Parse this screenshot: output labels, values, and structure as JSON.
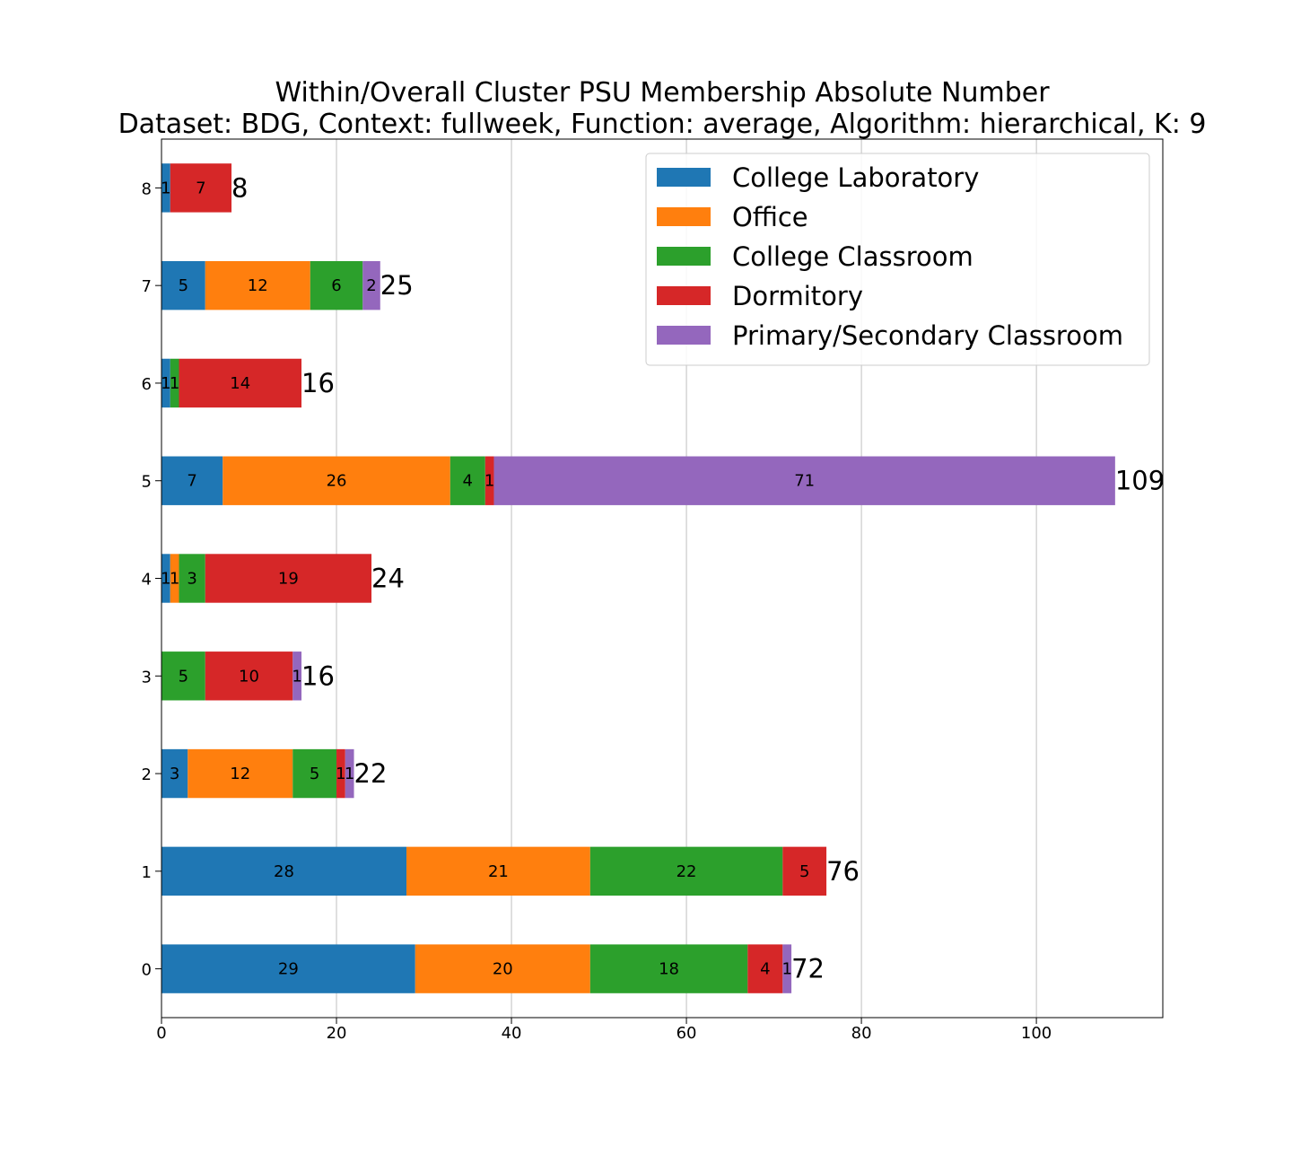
{
  "chart_data": {
    "type": "bar",
    "orientation": "horizontal",
    "stacked": true,
    "title": "Within/Overall Cluster PSU Membership Absolute Number",
    "subtitle": "Dataset: BDG, Context: fullweek, Function: average, Algorithm: hierarchical, K: 9",
    "xlabel": "",
    "ylabel": "",
    "xlim": [
      0,
      114.45
    ],
    "xticks": [
      0,
      20,
      40,
      60,
      80,
      100
    ],
    "categories": [
      "0",
      "1",
      "2",
      "3",
      "4",
      "5",
      "6",
      "7",
      "8"
    ],
    "series": [
      {
        "name": "College Laboratory",
        "color": "#1f77b4",
        "values": [
          29,
          28,
          3,
          0,
          1,
          7,
          1,
          5,
          1
        ]
      },
      {
        "name": "Office",
        "color": "#ff7f0e",
        "values": [
          20,
          21,
          12,
          0,
          1,
          26,
          0,
          12,
          0
        ]
      },
      {
        "name": "College Classroom",
        "color": "#2ca02c",
        "values": [
          18,
          22,
          5,
          5,
          3,
          4,
          1,
          6,
          0
        ]
      },
      {
        "name": "Dormitory",
        "color": "#d62728",
        "values": [
          4,
          5,
          1,
          10,
          19,
          1,
          14,
          0,
          7
        ]
      },
      {
        "name": "Primary/Secondary Classroom",
        "color": "#9467bd",
        "values": [
          1,
          0,
          1,
          1,
          0,
          71,
          0,
          2,
          0
        ]
      }
    ],
    "totals": [
      72,
      76,
      22,
      16,
      24,
      109,
      16,
      25,
      8
    ],
    "grid": "vertical",
    "legend_position": "top-right"
  }
}
